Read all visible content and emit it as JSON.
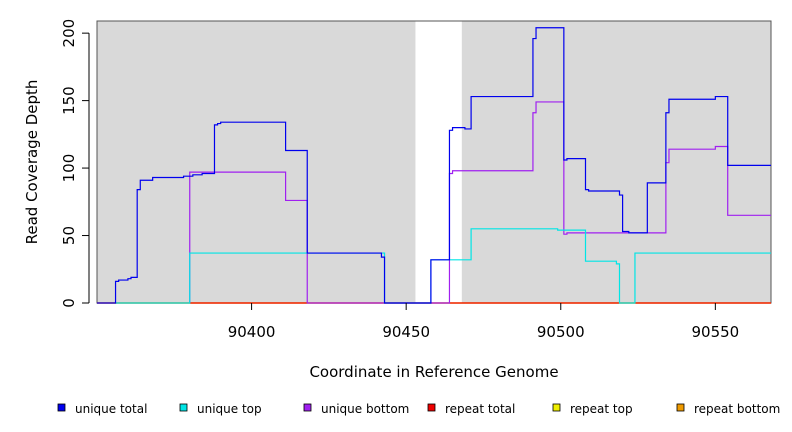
{
  "chart_data": {
    "type": "line",
    "title": "",
    "xlabel": "Coordinate in Reference Genome",
    "ylabel": "Read Coverage Depth",
    "xlim": [
      90350,
      90568
    ],
    "ylim": [
      0,
      209
    ],
    "x_ticks": [
      90400,
      90450,
      90500,
      90550
    ],
    "x_tick_labels": [
      "90400",
      "90450",
      "90500",
      "90550"
    ],
    "y_ticks": [
      0,
      50,
      100,
      150,
      200
    ],
    "y_tick_labels": [
      "0",
      "50",
      "100",
      "150",
      "200"
    ],
    "shaded_regions": [
      [
        90350,
        90453
      ],
      [
        90468,
        90568
      ]
    ],
    "shade_color": "#d9d9d9",
    "legend_position": "bottom",
    "series": [
      {
        "name": "unique total",
        "color": "#0000ee",
        "points": [
          [
            90350,
            0
          ],
          [
            90356,
            0
          ],
          [
            90356,
            16
          ],
          [
            90357,
            16
          ],
          [
            90357,
            17
          ],
          [
            90360,
            17
          ],
          [
            90360,
            18
          ],
          [
            90361,
            18
          ],
          [
            90361,
            19
          ],
          [
            90363,
            19
          ],
          [
            90363,
            84
          ],
          [
            90364,
            84
          ],
          [
            90364,
            91
          ],
          [
            90368,
            91
          ],
          [
            90368,
            93
          ],
          [
            90378,
            93
          ],
          [
            90378,
            94
          ],
          [
            90381,
            94
          ],
          [
            90381,
            95
          ],
          [
            90384,
            95
          ],
          [
            90384,
            96
          ],
          [
            90388,
            96
          ],
          [
            90388,
            132
          ],
          [
            90389,
            132
          ],
          [
            90389,
            133
          ],
          [
            90390,
            133
          ],
          [
            90390,
            134
          ],
          [
            90411,
            134
          ],
          [
            90411,
            113
          ],
          [
            90418,
            113
          ],
          [
            90418,
            37
          ],
          [
            90442,
            37
          ],
          [
            90442,
            34
          ],
          [
            90443,
            34
          ],
          [
            90443,
            0
          ],
          [
            90458,
            0
          ],
          [
            90458,
            32
          ],
          [
            90464,
            32
          ],
          [
            90464,
            128
          ],
          [
            90465,
            128
          ],
          [
            90465,
            130
          ],
          [
            90469,
            130
          ],
          [
            90469,
            129
          ],
          [
            90471,
            129
          ],
          [
            90471,
            153
          ],
          [
            90491,
            153
          ],
          [
            90491,
            196
          ],
          [
            90492,
            196
          ],
          [
            90492,
            204
          ],
          [
            90501,
            204
          ],
          [
            90501,
            106
          ],
          [
            90502,
            106
          ],
          [
            90502,
            107
          ],
          [
            90508,
            107
          ],
          [
            90508,
            84
          ],
          [
            90509,
            84
          ],
          [
            90509,
            83
          ],
          [
            90519,
            83
          ],
          [
            90519,
            80
          ],
          [
            90520,
            80
          ],
          [
            90520,
            53
          ],
          [
            90522,
            53
          ],
          [
            90522,
            52
          ],
          [
            90528,
            52
          ],
          [
            90528,
            89
          ],
          [
            90534,
            89
          ],
          [
            90534,
            141
          ],
          [
            90535,
            141
          ],
          [
            90535,
            151
          ],
          [
            90550,
            151
          ],
          [
            90550,
            153
          ],
          [
            90554,
            153
          ],
          [
            90554,
            102
          ],
          [
            90568,
            102
          ]
        ]
      },
      {
        "name": "unique top",
        "color": "#00e5e5",
        "points": [
          [
            90356,
            0
          ],
          [
            90380,
            0
          ],
          [
            90380,
            37
          ],
          [
            90443,
            37
          ],
          [
            90443,
            34
          ],
          [
            90443,
            34
          ],
          [
            90443,
            0
          ],
          [
            90458,
            0
          ],
          [
            90458,
            32
          ],
          [
            90471,
            32
          ],
          [
            90471,
            55
          ],
          [
            90499,
            55
          ],
          [
            90499,
            54
          ],
          [
            90508,
            54
          ],
          [
            90508,
            31
          ],
          [
            90518,
            31
          ],
          [
            90518,
            29
          ],
          [
            90519,
            29
          ],
          [
            90519,
            0
          ],
          [
            90524,
            0
          ],
          [
            90524,
            37
          ],
          [
            90568,
            37
          ]
        ]
      },
      {
        "name": "unique bottom",
        "color": "#a020f0",
        "points": [
          [
            90380,
            0
          ],
          [
            90380,
            97
          ],
          [
            90411,
            97
          ],
          [
            90411,
            76
          ],
          [
            90418,
            76
          ],
          [
            90418,
            0
          ],
          [
            90464,
            0
          ],
          [
            90464,
            96
          ],
          [
            90465,
            96
          ],
          [
            90465,
            98
          ],
          [
            90491,
            98
          ],
          [
            90491,
            141
          ],
          [
            90492,
            141
          ],
          [
            90492,
            149
          ],
          [
            90501,
            149
          ],
          [
            90501,
            51
          ],
          [
            90502,
            51
          ],
          [
            90502,
            52
          ],
          [
            90534,
            52
          ],
          [
            90534,
            104
          ],
          [
            90535,
            104
          ],
          [
            90535,
            114
          ],
          [
            90550,
            114
          ],
          [
            90550,
            116
          ],
          [
            90554,
            116
          ],
          [
            90554,
            65
          ],
          [
            90568,
            65
          ]
        ]
      },
      {
        "name": "repeat total",
        "color": "#ee0000",
        "points": [
          [
            90350,
            0
          ],
          [
            90568,
            0
          ]
        ]
      },
      {
        "name": "repeat top",
        "color": "#eeee00",
        "points": [
          [
            90350,
            0
          ],
          [
            90568,
            0
          ]
        ]
      },
      {
        "name": "repeat bottom",
        "color": "#ee9a00",
        "points": [
          [
            90350,
            0
          ],
          [
            90568,
            0
          ]
        ]
      }
    ]
  }
}
